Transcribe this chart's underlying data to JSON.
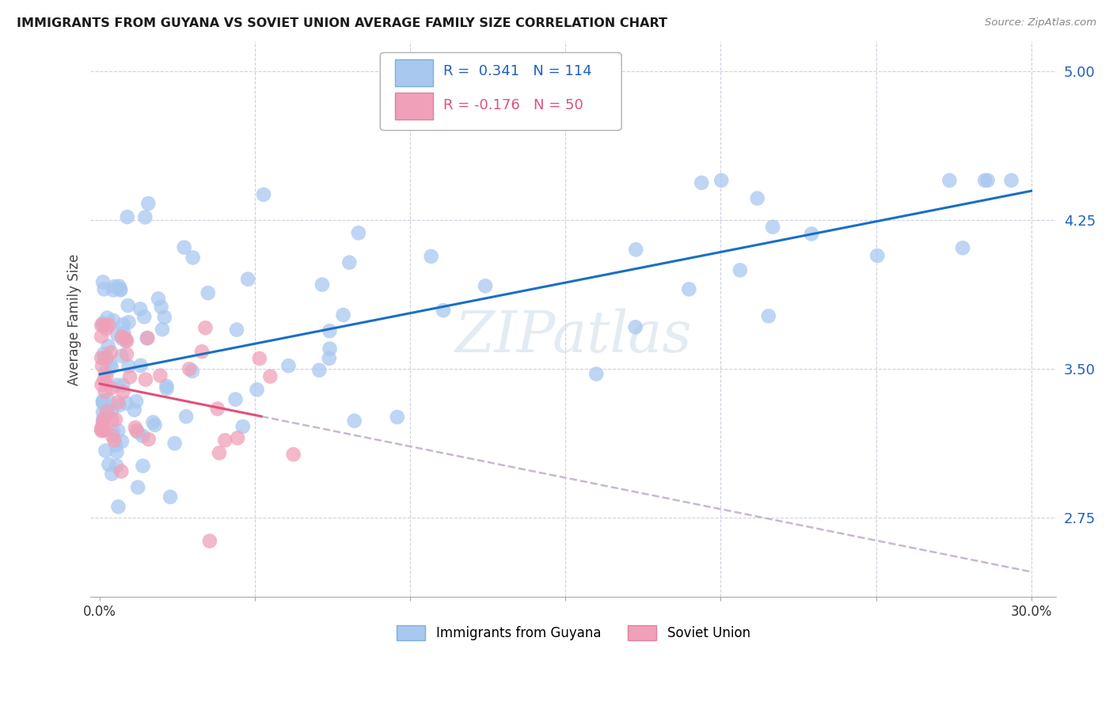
{
  "title": "IMMIGRANTS FROM GUYANA VS SOVIET UNION AVERAGE FAMILY SIZE CORRELATION CHART",
  "source": "Source: ZipAtlas.com",
  "ylabel": "Average Family Size",
  "yticks": [
    2.75,
    3.5,
    4.25,
    5.0
  ],
  "xlim": [
    0.0,
    0.3
  ],
  "ylim": [
    2.35,
    5.15
  ],
  "guyana_R": 0.341,
  "guyana_N": 114,
  "soviet_R": -0.176,
  "soviet_N": 50,
  "guyana_color": "#a8c8f0",
  "guyana_line_color": "#1a6fc4",
  "soviet_color": "#f0a0b8",
  "soviet_line_color": "#e0507a",
  "soviet_line_dashed_color": "#c8b8d0",
  "watermark": "ZIPatlas",
  "bg_color": "#ffffff",
  "grid_color": "#d0d0e0"
}
